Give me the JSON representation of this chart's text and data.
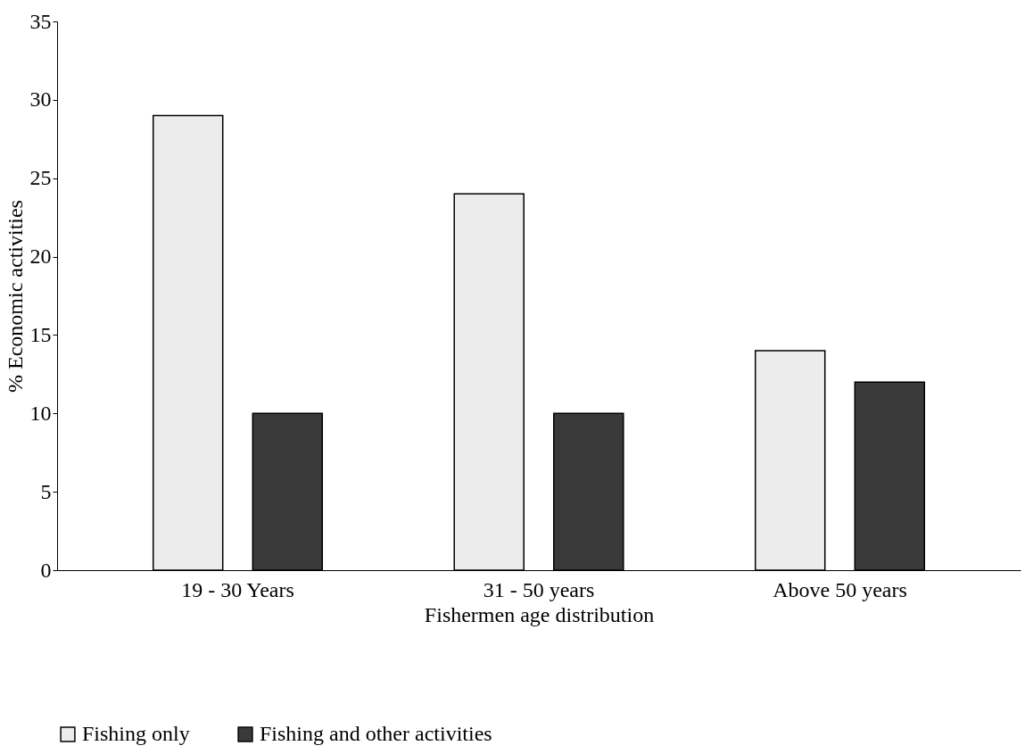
{
  "chart_data": {
    "type": "bar",
    "xlabel": "Fishermen age distribution",
    "ylabel": "% Economic activities",
    "categories": [
      "19 - 30 Years",
      "31 - 50 years",
      "Above 50 years"
    ],
    "series": [
      {
        "name": "Fishing only",
        "color": "#ececec",
        "values": [
          29,
          24,
          14
        ]
      },
      {
        "name": "Fishing and other activities",
        "color": "#3a3a3a",
        "values": [
          10,
          10,
          12
        ]
      }
    ],
    "ylim": [
      0,
      35
    ],
    "yticks": [
      0,
      5,
      10,
      15,
      20,
      25,
      30,
      35
    ],
    "grid": false,
    "legend": "bottom"
  }
}
